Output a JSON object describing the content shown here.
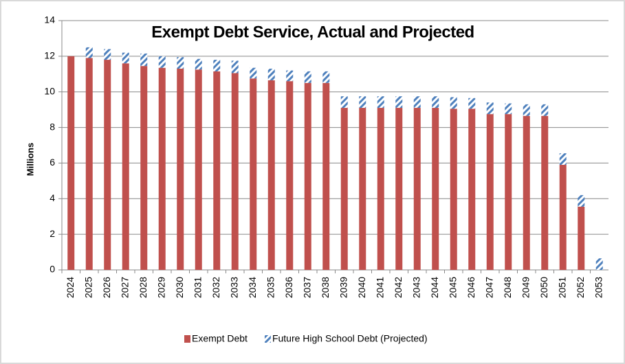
{
  "chart_data": {
    "type": "stacked_bar",
    "title": "Exempt Debt Service, Actual and Projected",
    "ylabel": "Millions",
    "categories": [
      "2024",
      "2025",
      "2026",
      "2027",
      "2028",
      "2029",
      "2030",
      "2031",
      "2032",
      "2033",
      "2034",
      "2035",
      "2036",
      "2037",
      "2038",
      "2039",
      "2040",
      "2041",
      "2042",
      "2043",
      "2044",
      "2045",
      "2046",
      "2047",
      "2048",
      "2049",
      "2050",
      "2051",
      "2052",
      "2053"
    ],
    "series": [
      {
        "name": "Exempt Debt",
        "color": "#c0504d",
        "values": [
          12.0,
          11.9,
          11.8,
          11.6,
          11.45,
          11.35,
          11.3,
          11.25,
          11.15,
          11.05,
          10.75,
          10.65,
          10.6,
          10.5,
          10.5,
          9.1,
          9.1,
          9.1,
          9.1,
          9.1,
          9.1,
          9.05,
          9.05,
          8.75,
          8.75,
          8.65,
          8.65,
          5.9,
          3.55,
          0
        ]
      },
      {
        "name": "Future High School Debt (Projected)",
        "color": "#4f81bd",
        "pattern": "diagonal",
        "values": [
          0,
          0.6,
          0.6,
          0.6,
          0.7,
          0.65,
          0.65,
          0.6,
          0.65,
          0.7,
          0.6,
          0.65,
          0.6,
          0.65,
          0.65,
          0.65,
          0.65,
          0.65,
          0.65,
          0.65,
          0.65,
          0.65,
          0.6,
          0.65,
          0.6,
          0.65,
          0.65,
          0.65,
          0.65,
          0.65
        ]
      }
    ],
    "ylim": [
      0,
      14
    ],
    "yticks": [
      0,
      2,
      4,
      6,
      8,
      10,
      12,
      14
    ],
    "grid": true,
    "legend": "bottom"
  }
}
